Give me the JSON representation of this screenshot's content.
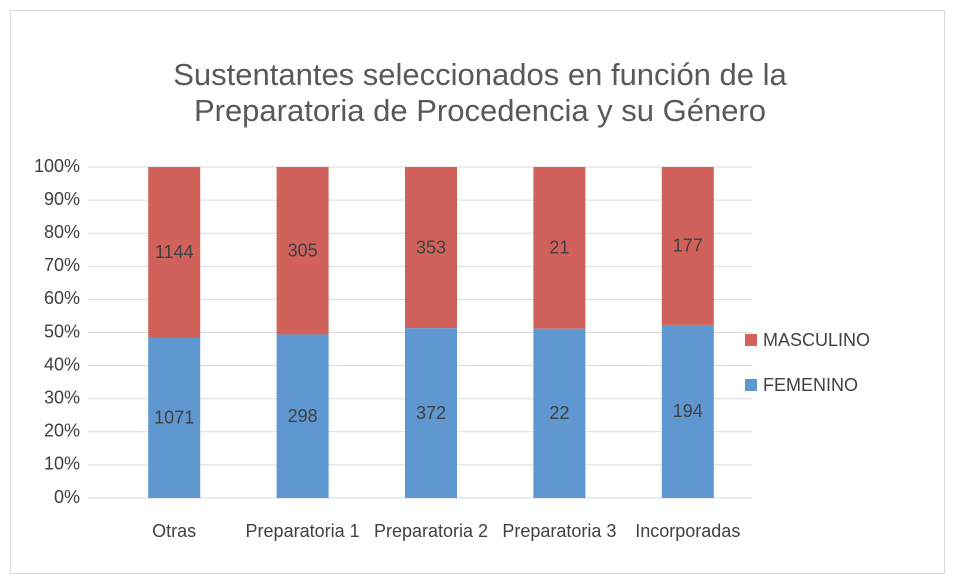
{
  "chart_data": {
    "type": "bar",
    "stacking": "percent",
    "title": "Sustentantes seleccionados en función de la Preparatoria de Procedencia y su Género",
    "categories": [
      "Otras",
      "Preparatoria 1",
      "Preparatoria 2",
      "Preparatoria 3",
      "Incorporadas"
    ],
    "series": [
      {
        "name": "FEMENINO",
        "color": "#5f97d0",
        "values": [
          1071,
          298,
          372,
          22,
          194
        ]
      },
      {
        "name": "MASCULINO",
        "color": "#d0625b",
        "values": [
          1144,
          305,
          353,
          21,
          177
        ]
      }
    ],
    "ylim": [
      0,
      100
    ],
    "yticks": [
      {
        "value": 0,
        "label": "0%"
      },
      {
        "value": 10,
        "label": "10%"
      },
      {
        "value": 20,
        "label": "20%"
      },
      {
        "value": 30,
        "label": "30%"
      },
      {
        "value": 40,
        "label": "40%"
      },
      {
        "value": 50,
        "label": "50%"
      },
      {
        "value": 60,
        "label": "60%"
      },
      {
        "value": 70,
        "label": "70%"
      },
      {
        "value": 80,
        "label": "80%"
      },
      {
        "value": 90,
        "label": "90%"
      },
      {
        "value": 100,
        "label": "100%"
      }
    ],
    "grid": true,
    "legend": "right"
  }
}
